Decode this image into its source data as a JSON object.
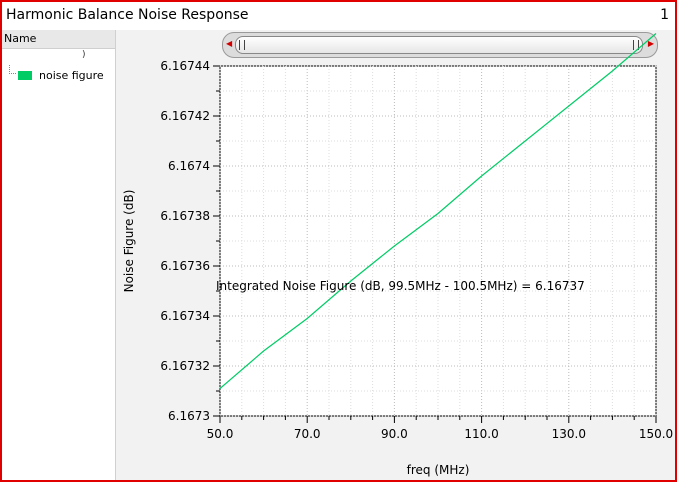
{
  "window": {
    "title": "Harmonic Balance Noise Response",
    "index": "1"
  },
  "legend": {
    "header": "Name",
    "items": [
      {
        "label": "noise figure",
        "color": "#00cc66"
      }
    ]
  },
  "chart_data": {
    "type": "line",
    "title": "",
    "xlabel": "freq (MHz)",
    "ylabel": "Noise Figure (dB)",
    "xlim": [
      50,
      150
    ],
    "ylim": [
      6.1673,
      6.16744
    ],
    "xticks": [
      "50.0",
      "70.0",
      "90.0",
      "110.0",
      "130.0",
      "150.0"
    ],
    "yticks": [
      "6.1673",
      "6.16732",
      "6.16734",
      "6.16736",
      "6.16738",
      "6.1674",
      "6.16742",
      "6.16744"
    ],
    "grid": true,
    "series": [
      {
        "name": "noise figure",
        "color": "#00cc66",
        "x": [
          50,
          60,
          70,
          80,
          90,
          100,
          110,
          120,
          130,
          140,
          150
        ],
        "y": [
          6.167311,
          6.167326,
          6.167339,
          6.167354,
          6.167368,
          6.167381,
          6.167396,
          6.16741,
          6.167424,
          6.167438,
          6.167453
        ]
      }
    ],
    "annotation": "Integrated Noise Figure (dB, 99.5MHz - 100.5MHz) = 6.16737"
  }
}
